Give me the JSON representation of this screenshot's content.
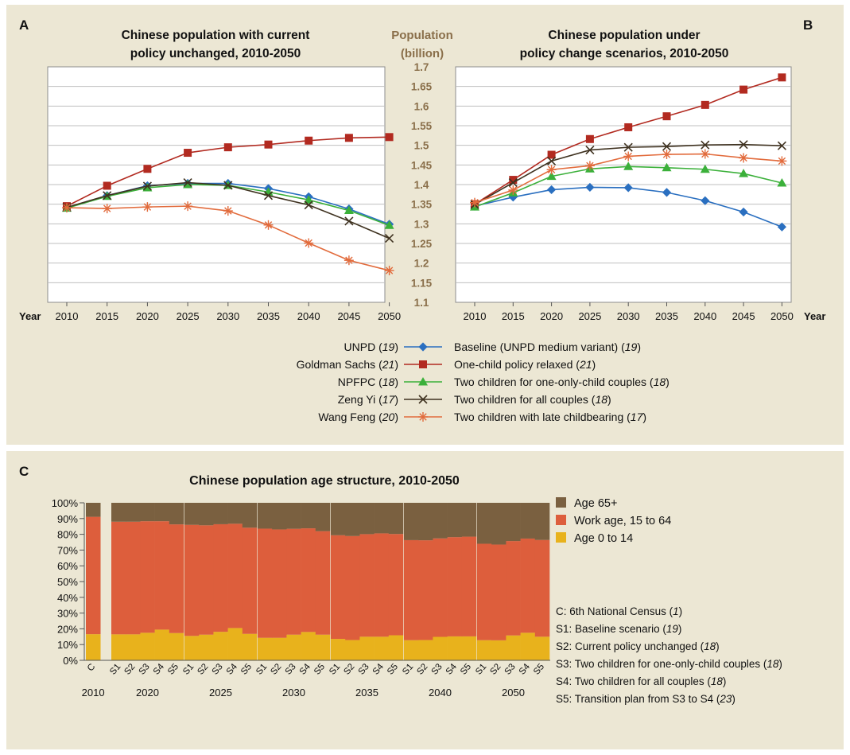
{
  "colors": {
    "unpd": "#2a6fc0",
    "goldman": "#b22a20",
    "npfpc": "#3bb03a",
    "zeng": "#3f3220",
    "wang": "#e26b3c",
    "age65": "#7a6040",
    "work": "#dd5e3c",
    "young": "#e8b21c",
    "grid": "#bfbfbf",
    "axis_title": "#8a6f4a"
  },
  "chart_data": [
    {
      "id": "A",
      "type": "line",
      "panel_letter": "A",
      "title_lines": [
        "Chinese population with current",
        "policy unchanged, 2010-2050"
      ],
      "xlabel": "Year",
      "x": [
        2010,
        2015,
        2020,
        2025,
        2030,
        2035,
        2040,
        2045,
        2050
      ],
      "ylim": [
        1.1,
        1.7
      ],
      "grid": true,
      "series": [
        {
          "key": "unpd",
          "marker": "diamond",
          "x": [
            2010,
            2015,
            2020,
            2025,
            2030,
            2035,
            2040,
            2045,
            2050
          ],
          "values": [
            1.341,
            1.372,
            1.397,
            1.403,
            1.403,
            1.39,
            1.369,
            1.338,
            1.299
          ]
        },
        {
          "key": "goldman",
          "marker": "square",
          "x": [
            2010,
            2015,
            2020,
            2025,
            2030,
            2035,
            2040,
            2045,
            2050
          ],
          "values": [
            1.345,
            1.397,
            1.44,
            1.481,
            1.495,
            1.502,
            1.512,
            1.519,
            1.521
          ]
        },
        {
          "key": "npfpc",
          "marker": "triangle",
          "x": [
            2010,
            2015,
            2020,
            2025,
            2030,
            2035,
            2040,
            2045,
            2050
          ],
          "values": [
            1.34,
            1.37,
            1.392,
            1.4,
            1.398,
            1.381,
            1.361,
            1.334,
            1.296
          ]
        },
        {
          "key": "zeng",
          "marker": "x",
          "x": [
            2010,
            2015,
            2020,
            2025,
            2030,
            2035,
            2040,
            2045,
            2050
          ],
          "values": [
            1.342,
            1.372,
            1.396,
            1.405,
            1.398,
            1.372,
            1.348,
            1.307,
            1.263
          ]
        },
        {
          "key": "wang",
          "marker": "asterisk",
          "x": [
            2010,
            2015,
            2020,
            2025,
            2030,
            2035,
            2040,
            2045,
            2050
          ],
          "values": [
            1.341,
            1.339,
            1.343,
            1.345,
            1.333,
            1.297,
            1.251,
            1.207,
            1.181
          ]
        }
      ]
    },
    {
      "id": "B",
      "type": "line",
      "panel_letter": "B",
      "title_lines": [
        "Chinese population under",
        "policy change scenarios, 2010-2050"
      ],
      "xlabel": "Year",
      "x": [
        2010,
        2015,
        2020,
        2025,
        2030,
        2035,
        2040,
        2045,
        2050
      ],
      "ylim": [
        1.1,
        1.7
      ],
      "grid": true,
      "series": [
        {
          "key": "unpd",
          "marker": "diamond",
          "x": [
            2010,
            2015,
            2020,
            2025,
            2030,
            2035,
            2040,
            2045,
            2050
          ],
          "values": [
            1.345,
            1.368,
            1.387,
            1.393,
            1.392,
            1.38,
            1.359,
            1.33,
            1.292
          ]
        },
        {
          "key": "goldman",
          "marker": "square",
          "x": [
            2010,
            2015,
            2020,
            2025,
            2030,
            2035,
            2040,
            2045,
            2050
          ],
          "values": [
            1.35,
            1.412,
            1.476,
            1.516,
            1.546,
            1.574,
            1.603,
            1.642,
            1.673
          ]
        },
        {
          "key": "npfpc",
          "marker": "triangle",
          "x": [
            2010,
            2015,
            2020,
            2025,
            2030,
            2035,
            2040,
            2045,
            2050
          ],
          "values": [
            1.343,
            1.379,
            1.421,
            1.44,
            1.446,
            1.443,
            1.439,
            1.428,
            1.404
          ]
        },
        {
          "key": "zeng",
          "marker": "x",
          "x": [
            2010,
            2015,
            2020,
            2025,
            2030,
            2035,
            2040,
            2045,
            2050
          ],
          "values": [
            1.349,
            1.405,
            1.46,
            1.488,
            1.495,
            1.497,
            1.501,
            1.502,
            1.499
          ]
        },
        {
          "key": "wang",
          "marker": "asterisk",
          "x": [
            2010,
            2015,
            2020,
            2025,
            2030,
            2035,
            2040,
            2045,
            2050
          ],
          "values": [
            1.354,
            1.386,
            1.438,
            1.448,
            1.472,
            1.477,
            1.478,
            1.468,
            1.46
          ]
        }
      ]
    },
    {
      "id": "C",
      "type": "bar",
      "stacked": true,
      "panel_letter": "C",
      "title": "Chinese population age structure, 2010-2050",
      "ylim": [
        0,
        100
      ],
      "yticks": [
        "0%",
        "10%",
        "20%",
        "30%",
        "40%",
        "50%",
        "60%",
        "70%",
        "80%",
        "90%",
        "100%"
      ],
      "legend": [
        {
          "key": "age65",
          "label": "Age 65+"
        },
        {
          "key": "work",
          "label": "Work age, 15 to 64"
        },
        {
          "key": "young",
          "label": "Age 0 to 14"
        }
      ],
      "groups": [
        {
          "year": "2010",
          "bars": [
            {
              "label": "C",
              "young": 16.6,
              "work": 91.1
            }
          ]
        },
        {
          "year": "2020",
          "bars": [
            {
              "label": "S1",
              "young": 16.5,
              "work": 88.0
            },
            {
              "label": "S2",
              "young": 16.5,
              "work": 88.0
            },
            {
              "label": "S3",
              "young": 17.5,
              "work": 88.3
            },
            {
              "label": "S4",
              "young": 19.5,
              "work": 88.3
            },
            {
              "label": "S5",
              "young": 17.3,
              "work": 86.3
            }
          ]
        },
        {
          "year": "2025",
          "bars": [
            {
              "label": "S1",
              "young": 15.5,
              "work": 86.0
            },
            {
              "label": "S2",
              "young": 16.3,
              "work": 85.7
            },
            {
              "label": "S3",
              "young": 18.1,
              "work": 86.4
            },
            {
              "label": "S4",
              "young": 20.5,
              "work": 86.7
            },
            {
              "label": "S5",
              "young": 16.8,
              "work": 84.2
            }
          ]
        },
        {
          "year": "2030",
          "bars": [
            {
              "label": "S1",
              "young": 14.3,
              "work": 83.6
            },
            {
              "label": "S2",
              "young": 14.3,
              "work": 83.1
            },
            {
              "label": "S3",
              "young": 16.3,
              "work": 83.5
            },
            {
              "label": "S4",
              "young": 18.0,
              "work": 83.8
            },
            {
              "label": "S5",
              "young": 16.3,
              "work": 82.0
            }
          ]
        },
        {
          "year": "2035",
          "bars": [
            {
              "label": "S1",
              "young": 13.6,
              "work": 79.4
            },
            {
              "label": "S2",
              "young": 12.9,
              "work": 78.9
            },
            {
              "label": "S3",
              "young": 15.0,
              "work": 80.1
            },
            {
              "label": "S4",
              "young": 15.0,
              "work": 80.6
            },
            {
              "label": "S5",
              "young": 15.9,
              "work": 80.2
            }
          ]
        },
        {
          "year": "2040",
          "bars": [
            {
              "label": "S1",
              "young": 12.8,
              "work": 76.3
            },
            {
              "label": "S2",
              "young": 12.9,
              "work": 76.2
            },
            {
              "label": "S3",
              "young": 14.9,
              "work": 77.4
            },
            {
              "label": "S4",
              "young": 15.2,
              "work": 78.2
            },
            {
              "label": "S5",
              "young": 15.2,
              "work": 78.5
            }
          ]
        },
        {
          "year": "2050",
          "bars": [
            {
              "label": "S1",
              "young": 12.8,
              "work": 74.0
            },
            {
              "label": "S2",
              "young": 12.7,
              "work": 73.5
            },
            {
              "label": "S3",
              "young": 15.8,
              "work": 75.7
            },
            {
              "label": "S4",
              "young": 17.5,
              "work": 77.3
            },
            {
              "label": "S5",
              "young": 15.0,
              "work": 76.4
            }
          ]
        }
      ],
      "notes": [
        {
          "pre": "C: 6th National Census (",
          "ref": "1",
          "post": ")"
        },
        {
          "pre": "S1: Baseline scenario (",
          "ref": "19",
          "post": ")"
        },
        {
          "pre": "S2: Current policy unchanged (",
          "ref": "18",
          "post": ")"
        },
        {
          "pre": "S3: Two children for one-only-child couples (",
          "ref": "18",
          "post": ")"
        },
        {
          "pre": "S4: Two children for all couples (",
          "ref": "18",
          "post": ")"
        },
        {
          "pre": "S5: Transition plan from S3 to S4 (",
          "ref": "23",
          "post": ")"
        }
      ]
    }
  ],
  "shared_axis": {
    "title_lines": [
      "Population",
      "(billion)"
    ],
    "ticks": [
      "1.1",
      "1.15",
      "1.2",
      "1.25",
      "1.3",
      "1.35",
      "1.4",
      "1.45",
      "1.5",
      "1.55",
      "1.6",
      "1.65",
      "1.7"
    ]
  },
  "legend_ab": [
    {
      "key": "unpd",
      "marker": "diamond",
      "left": "UNPD",
      "left_ref": "19",
      "right": "Baseline (UNPD medium variant)",
      "right_ref": "19"
    },
    {
      "key": "goldman",
      "marker": "square",
      "left": "Goldman Sachs",
      "left_ref": "21",
      "right": "One-child policy relaxed",
      "right_ref": "21"
    },
    {
      "key": "npfpc",
      "marker": "triangle",
      "left": "NPFPC",
      "left_ref": "18",
      "right": "Two children for one-only-child couples",
      "right_ref": "18"
    },
    {
      "key": "zeng",
      "marker": "x",
      "left": "Zeng Yi",
      "left_ref": "17",
      "right": "Two children for all couples",
      "right_ref": "18"
    },
    {
      "key": "wang",
      "marker": "asterisk",
      "left": "Wang Feng",
      "left_ref": "20",
      "right": "Two children with late childbearing",
      "right_ref": "17"
    }
  ]
}
